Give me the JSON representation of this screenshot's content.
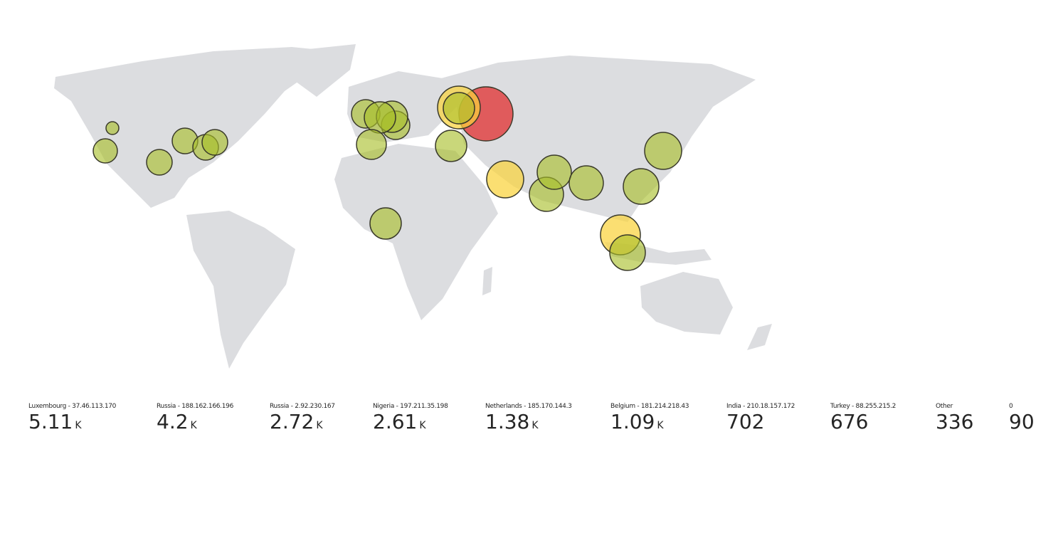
{
  "tiles": [
    {
      "label": "Luxembourg - 37.46.113.170",
      "value": "5.11",
      "suffix": "K"
    },
    {
      "label": "Russia - 188.162.166.196",
      "value": "4.2",
      "suffix": "K"
    },
    {
      "label": "Russia - 2.92.230.167",
      "value": "2.72",
      "suffix": "K"
    },
    {
      "label": "Nigeria - 197.211.35.198",
      "value": "2.61",
      "suffix": "K"
    },
    {
      "label": "Netherlands - 185.170.144.3",
      "value": "1.38",
      "suffix": "K"
    },
    {
      "label": "Belgium - 181.214.218.43",
      "value": "1.09",
      "suffix": "K"
    },
    {
      "label": "India - 210.18.157.172",
      "value": "702"
    },
    {
      "label": "Turkey - 88.255.215.2",
      "value": "676"
    },
    {
      "label": "Other",
      "value": "336"
    },
    {
      "label": "0",
      "value": "90"
    }
  ]
}
